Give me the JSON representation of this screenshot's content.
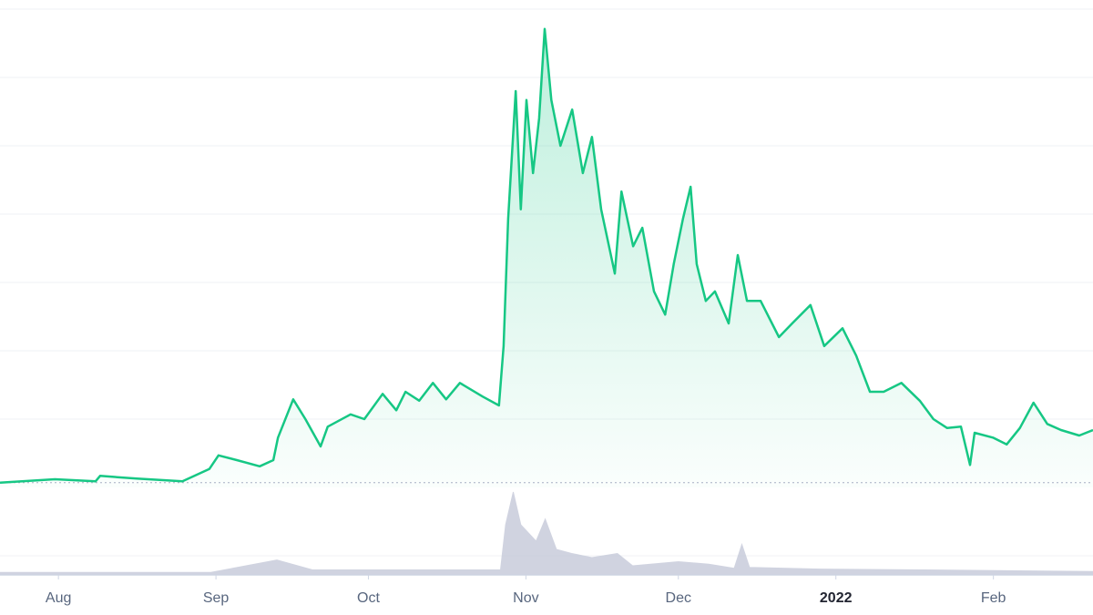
{
  "chart_data": {
    "type": "line",
    "xlim": [
      -11.5,
      203.6
    ],
    "xticks": [
      {
        "value": 0,
        "label": "Aug"
      },
      {
        "value": 31,
        "label": "Sep"
      },
      {
        "value": 61,
        "label": "Oct"
      },
      {
        "value": 92,
        "label": "Nov"
      },
      {
        "value": 122,
        "label": "Dec"
      },
      {
        "value": 153,
        "label": "2022"
      },
      {
        "value": 184,
        "label": "Feb"
      }
    ],
    "ylim": [
      0,
      7
    ],
    "yticks": [
      1,
      2,
      3,
      4,
      5,
      6,
      7
    ],
    "y2lim": [
      0,
      1
    ],
    "grid": true,
    "series": [
      {
        "color": "#16c784",
        "x": [
          -11.5,
          -0.7,
          7.3,
          8.2,
          15.4,
          24.4,
          29.7,
          31.5,
          35.1,
          39.6,
          42.3,
          43.2,
          46.2,
          48.6,
          51.6,
          53.0,
          57.5,
          60.2,
          63.8,
          66.5,
          68.3,
          71.0,
          73.7,
          76.3,
          79.0,
          83.5,
          86.7,
          87.6,
          88.5,
          90.0,
          91.0,
          92.1,
          93.4,
          94.6,
          95.7,
          97.0,
          98.8,
          101.1,
          103.2,
          105.0,
          106.8,
          109.5,
          110.8,
          113.1,
          114.9,
          117.2,
          119.4,
          121.1,
          122.9,
          124.4,
          125.6,
          127.4,
          129.2,
          131.9,
          133.7,
          135.5,
          138.2,
          141.8,
          144.4,
          148.0,
          150.7,
          154.3,
          157.0,
          159.7,
          162.4,
          165.9,
          169.5,
          172.2,
          174.9,
          177.6,
          179.4,
          180.3,
          183.9,
          186.6,
          189.2,
          191.9,
          194.6,
          197.3,
          200.9,
          203.6
        ],
        "values": [
          0.07,
          0.12,
          0.09,
          0.17,
          0.13,
          0.09,
          0.27,
          0.47,
          0.4,
          0.31,
          0.4,
          0.73,
          1.29,
          1.0,
          0.6,
          0.89,
          1.07,
          1.0,
          1.37,
          1.13,
          1.4,
          1.27,
          1.53,
          1.29,
          1.53,
          1.33,
          1.2,
          2.07,
          3.93,
          5.8,
          4.07,
          5.67,
          4.6,
          5.4,
          6.71,
          5.67,
          5.0,
          5.53,
          4.6,
          5.13,
          4.07,
          3.13,
          4.33,
          3.53,
          3.8,
          2.87,
          2.53,
          3.27,
          3.93,
          4.4,
          3.27,
          2.73,
          2.87,
          2.4,
          3.4,
          2.73,
          2.73,
          2.2,
          2.4,
          2.67,
          2.07,
          2.33,
          1.93,
          1.4,
          1.4,
          1.53,
          1.27,
          1.0,
          0.87,
          0.89,
          0.33,
          0.8,
          0.73,
          0.63,
          0.87,
          1.24,
          0.93,
          0.84,
          0.76,
          0.84
        ]
      },
      {
        "color": "#c8ccdb",
        "axis": "y2",
        "x": [
          -11.5,
          30,
          43,
          50,
          80,
          87,
          88,
          89.5,
          91,
          94,
          95.8,
          98,
          101,
          105,
          110,
          113,
          122,
          128,
          133,
          134.5,
          136,
          150,
          170,
          203.6
        ],
        "values": [
          0.02,
          0.02,
          0.17,
          0.05,
          0.05,
          0.05,
          0.6,
          1.0,
          0.6,
          0.4,
          0.67,
          0.3,
          0.25,
          0.2,
          0.25,
          0.1,
          0.15,
          0.12,
          0.07,
          0.36,
          0.08,
          0.06,
          0.05,
          0.03
        ]
      }
    ]
  }
}
